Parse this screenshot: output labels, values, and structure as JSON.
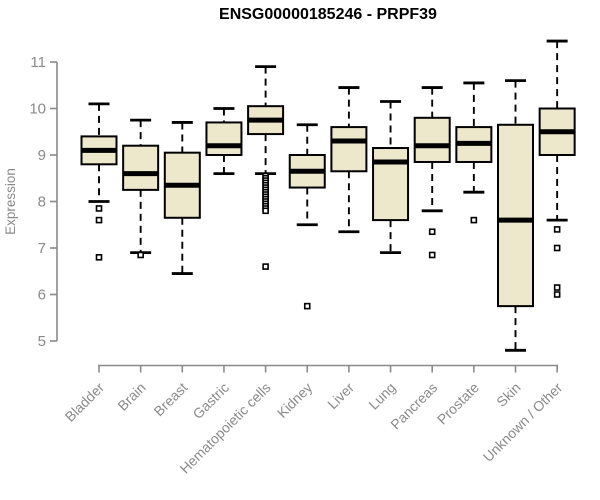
{
  "chart_data": {
    "type": "boxplot",
    "title": "ENSG00000185246 - PRPF39",
    "xlabel": "",
    "ylabel": "Expression",
    "ylim": [
      5,
      11
    ],
    "yticks": [
      5,
      6,
      7,
      8,
      9,
      10,
      11
    ],
    "grid": false,
    "legend_position": "none",
    "categories": [
      "Bladder",
      "Brain",
      "Breast",
      "Gastric",
      "Hematopoietic cells",
      "Kidney",
      "Liver",
      "Lung",
      "Pancreas",
      "Prostate",
      "Skin",
      "Unknown / Other"
    ],
    "series": [
      {
        "name": "Bladder",
        "whisker_low": 8.0,
        "q1": 8.8,
        "median": 9.1,
        "q3": 9.4,
        "whisker_high": 10.1,
        "outliers": [
          7.85,
          7.6,
          6.8
        ]
      },
      {
        "name": "Brain",
        "whisker_low": 6.9,
        "q1": 8.25,
        "median": 8.6,
        "q3": 9.2,
        "whisker_high": 9.75,
        "outliers": [
          6.85
        ]
      },
      {
        "name": "Breast",
        "whisker_low": 6.45,
        "q1": 7.65,
        "median": 8.35,
        "q3": 9.05,
        "whisker_high": 9.7,
        "outliers": []
      },
      {
        "name": "Gastric",
        "whisker_low": 8.6,
        "q1": 9.0,
        "median": 9.2,
        "q3": 9.7,
        "whisker_high": 10.0,
        "outliers": []
      },
      {
        "name": "Hematopoietic cells",
        "whisker_low": 8.6,
        "q1": 9.45,
        "median": 9.75,
        "q3": 10.05,
        "whisker_high": 10.9,
        "outliers": [
          8.55,
          8.5,
          8.45,
          8.4,
          8.35,
          8.3,
          8.25,
          8.2,
          8.15,
          8.1,
          8.05,
          8.0,
          7.95,
          7.9,
          7.85,
          7.8,
          6.6
        ]
      },
      {
        "name": "Kidney",
        "whisker_low": 7.5,
        "q1": 8.3,
        "median": 8.65,
        "q3": 9.0,
        "whisker_high": 9.65,
        "outliers": [
          5.75
        ]
      },
      {
        "name": "Liver",
        "whisker_low": 7.35,
        "q1": 8.65,
        "median": 9.3,
        "q3": 9.6,
        "whisker_high": 10.45,
        "outliers": []
      },
      {
        "name": "Lung",
        "whisker_low": 6.9,
        "q1": 7.6,
        "median": 8.85,
        "q3": 9.15,
        "whisker_high": 10.15,
        "outliers": []
      },
      {
        "name": "Pancreas",
        "whisker_low": 7.8,
        "q1": 8.85,
        "median": 9.2,
        "q3": 9.8,
        "whisker_high": 10.45,
        "outliers": [
          7.35,
          6.85
        ]
      },
      {
        "name": "Prostate",
        "whisker_low": 8.2,
        "q1": 8.85,
        "median": 9.25,
        "q3": 9.6,
        "whisker_high": 10.55,
        "outliers": [
          7.6
        ]
      },
      {
        "name": "Skin",
        "whisker_low": 4.8,
        "q1": 5.75,
        "median": 7.6,
        "q3": 9.65,
        "whisker_high": 10.6,
        "outliers": []
      },
      {
        "name": "Unknown / Other",
        "whisker_low": 7.6,
        "q1": 9.0,
        "median": 9.5,
        "q3": 10.0,
        "whisker_high": 11.45,
        "outliers": [
          7.4,
          7.0,
          6.15,
          6.0
        ]
      }
    ]
  },
  "colors": {
    "background": "#FFFFFF",
    "box_fill": "#EDE7CC",
    "box_stroke": "#000000",
    "median": "#000000",
    "whisker": "#000000",
    "outlier_stroke": "#000000",
    "outlier_fill": "#FFFFFF",
    "axis": "#8A8A8A",
    "tick_label": "#8A8A8A",
    "title": "#000000"
  }
}
